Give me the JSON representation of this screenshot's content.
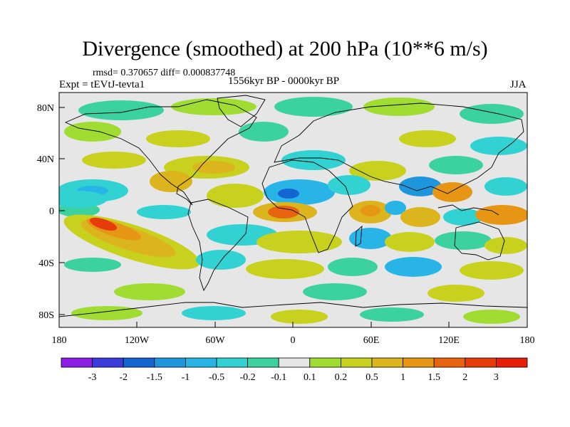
{
  "title": "Divergence (smoothed) at 200 hPa (10**6 m/s)",
  "stats_line": "rmsd= 0.370657 diff= 0.000837748",
  "experiment": "Expt = tEVtJ-tevta1",
  "period": "1556kyr BP - 0000kyr BP",
  "season": "JJA",
  "axes": {
    "lat_ticks": [
      "80N",
      "40N",
      "0",
      "40S",
      "80S"
    ],
    "lon_ticks": [
      "180",
      "120W",
      "60W",
      "0",
      "60E",
      "120E",
      "180"
    ]
  },
  "colorbar": {
    "labels": [
      "-3",
      "-2",
      "-1.5",
      "-1",
      "-0.5",
      "-0.2",
      "-0.1",
      "0.1",
      "0.2",
      "0.5",
      "1",
      "1.5",
      "2",
      "3"
    ],
    "colors": [
      "#8c1ee6",
      "#3c3cdc",
      "#1464d2",
      "#1e96dc",
      "#28b4e6",
      "#32d2d2",
      "#3cd2a0",
      "#e6e6e6",
      "#a0dc32",
      "#c8d21e",
      "#dcb41e",
      "#e69614",
      "#e6640f",
      "#e63c0a",
      "#e61e0a"
    ]
  },
  "fill_colors": {
    "neutral": "#e6e6e6",
    "pos1": "#a0dc32",
    "pos2": "#c8d21e",
    "pos3": "#dcb41e",
    "pos4": "#e69614",
    "pos5": "#e6640f",
    "pos6": "#e63c0a",
    "neg1": "#3cd2a0",
    "neg2": "#32d2d2",
    "neg3": "#28b4e6",
    "neg4": "#1e96dc",
    "neg5": "#1464d2"
  }
}
